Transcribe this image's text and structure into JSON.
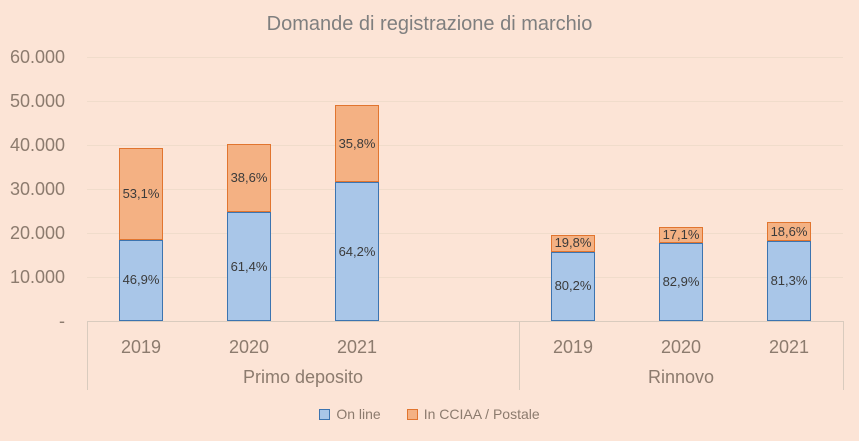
{
  "title": "Domande di registrazione di marchio",
  "colors": {
    "background": "#FCE4D6",
    "gridline": "#F0DCCB",
    "axis_line": "#D9CBBE",
    "axis_text": "#8C7B6E",
    "title_text": "#7F7F7F",
    "data_label_text": "#3B3B3B"
  },
  "chart_data": {
    "type": "bar",
    "stacked": true,
    "title": "Domande di registrazione di marchio",
    "xlabel": "",
    "ylabel": "",
    "ylim": [
      0,
      60000
    ],
    "grid": true,
    "legend_position": "bottom",
    "y_ticks": [
      {
        "value": 0,
        "label": "-"
      },
      {
        "value": 10000,
        "label": "10.000"
      },
      {
        "value": 20000,
        "label": "20.000"
      },
      {
        "value": 30000,
        "label": "30.000"
      },
      {
        "value": 40000,
        "label": "40.000"
      },
      {
        "value": 50000,
        "label": "50.000"
      },
      {
        "value": 60000,
        "label": "60.000"
      }
    ],
    "series": [
      {
        "name": "On line",
        "fill": "#A9C6E8",
        "border": "#3C74B0"
      },
      {
        "name": "In CCIAA / Postale",
        "fill": "#F4B183",
        "border": "#E1752F"
      }
    ],
    "groups": [
      {
        "label": "Primo deposito",
        "bars": [
          {
            "category": "2019",
            "total_approx": 39400,
            "segments": [
              {
                "series": "On line",
                "value_approx": 18500,
                "label": "46,9%"
              },
              {
                "series": "In CCIAA / Postale",
                "value_approx": 20900,
                "label": "53,1%"
              }
            ]
          },
          {
            "category": "2020",
            "total_approx": 40300,
            "segments": [
              {
                "series": "On line",
                "value_approx": 24700,
                "label": "61,4%"
              },
              {
                "series": "In CCIAA / Postale",
                "value_approx": 15600,
                "label": "38,6%"
              }
            ]
          },
          {
            "category": "2021",
            "total_approx": 49000,
            "segments": [
              {
                "series": "On line",
                "value_approx": 31500,
                "label": "64,2%"
              },
              {
                "series": "In CCIAA / Postale",
                "value_approx": 17500,
                "label": "35,8%"
              }
            ]
          }
        ]
      },
      {
        "label": "Rinnovo",
        "bars": [
          {
            "category": "2019",
            "total_approx": 19600,
            "segments": [
              {
                "series": "On line",
                "value_approx": 15700,
                "label": "80,2%"
              },
              {
                "series": "In CCIAA / Postale",
                "value_approx": 3900,
                "label": "19,8%"
              }
            ]
          },
          {
            "category": "2020",
            "total_approx": 21300,
            "segments": [
              {
                "series": "On line",
                "value_approx": 17700,
                "label": "82,9%"
              },
              {
                "series": "In CCIAA / Postale",
                "value_approx": 3600,
                "label": "17,1%"
              }
            ]
          },
          {
            "category": "2021",
            "total_approx": 22400,
            "segments": [
              {
                "series": "On line",
                "value_approx": 18200,
                "label": "81,3%"
              },
              {
                "series": "In CCIAA / Postale",
                "value_approx": 4200,
                "label": "18,6%"
              }
            ]
          }
        ]
      }
    ]
  },
  "legend": {
    "items": [
      "On line",
      "In CCIAA / Postale"
    ]
  }
}
